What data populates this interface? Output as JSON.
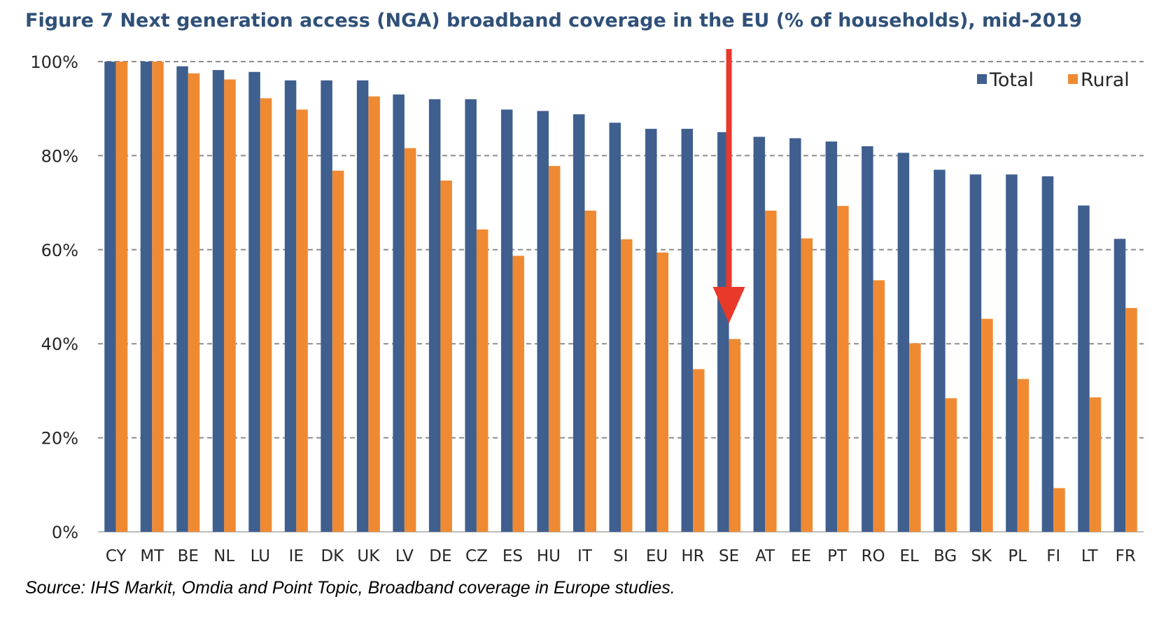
{
  "title": "Figure 7 Next generation access (NGA) broadband coverage in the EU (% of households), mid-2019",
  "source": "Source: IHS Markit, Omdia and Point Topic, Broadband coverage in Europe studies.",
  "colors": {
    "total": "#3f5f8f",
    "rural": "#ef8a33",
    "arrow": "#e8392b",
    "grid": "#8c8c8c"
  },
  "chart_data": {
    "type": "bar",
    "categories": [
      "CY",
      "MT",
      "BE",
      "NL",
      "LU",
      "IE",
      "DK",
      "UK",
      "LV",
      "DE",
      "CZ",
      "ES",
      "HU",
      "IT",
      "SI",
      "EU",
      "HR",
      "SE",
      "AT",
      "EE",
      "PT",
      "RO",
      "EL",
      "BG",
      "SK",
      "PL",
      "FI",
      "LT",
      "FR"
    ],
    "series": [
      {
        "name": "Total",
        "values": [
          100,
          100,
          99,
          98.2,
          97.8,
          96,
          96,
          96,
          93,
          92,
          92,
          89.8,
          89.5,
          88.8,
          87,
          85.7,
          85.7,
          85,
          84,
          83.7,
          83,
          82,
          80.6,
          77,
          76,
          76,
          75.6,
          69.4,
          62.3
        ]
      },
      {
        "name": "Rural",
        "values": [
          100,
          100,
          97.5,
          96.2,
          92.2,
          89.8,
          76.8,
          92.6,
          81.6,
          74.7,
          64.3,
          58.7,
          77.8,
          68.3,
          62.2,
          59.4,
          34.6,
          41,
          68.3,
          62.4,
          69.3,
          53.5,
          40.1,
          28.4,
          45.3,
          32.5,
          9.3,
          28.6,
          47.6
        ]
      }
    ],
    "y_ticks": [
      "0%",
      "20%",
      "40%",
      "60%",
      "80%",
      "100%"
    ],
    "ylim": [
      0,
      100
    ],
    "grid": true,
    "legend_position": "top-right",
    "annotation": {
      "type": "arrow",
      "category": "SE",
      "direction": "down"
    }
  }
}
